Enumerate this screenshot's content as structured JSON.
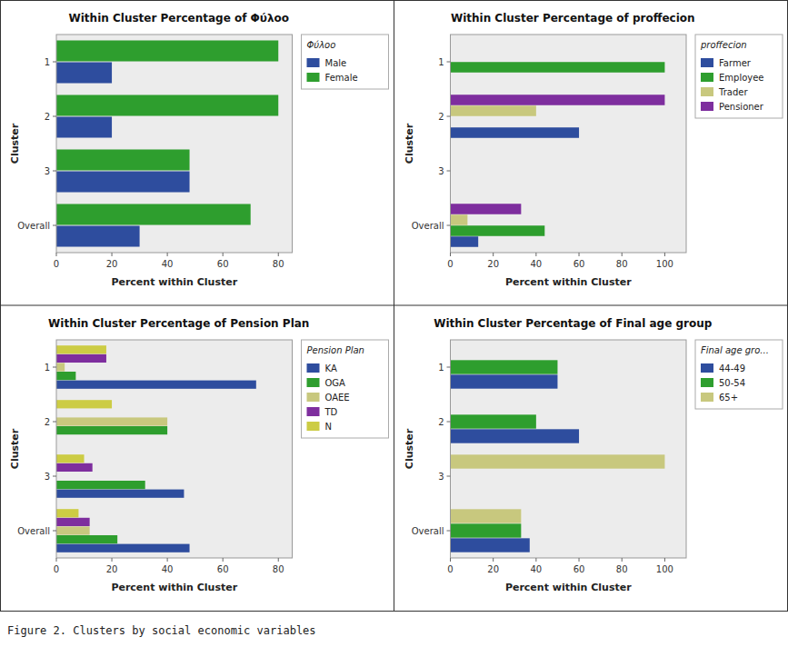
{
  "caption": "Figure 2. Clusters by social economic variables",
  "chart_data": [
    {
      "type": "bar",
      "orientation": "horizontal",
      "title": "Within Cluster Percentage of Φύλoο",
      "legend_title": "Φύλoο",
      "legend": "right",
      "grid": false,
      "categories": [
        "Overall",
        "3",
        "2",
        "1"
      ],
      "series": [
        {
          "name": "Male",
          "color": "#2e4d9e",
          "values": [
            30,
            48,
            20,
            20
          ]
        },
        {
          "name": "Female",
          "color": "#2e9e2e",
          "values": [
            70,
            48,
            80,
            80
          ]
        }
      ],
      "xlim": [
        0,
        85
      ],
      "xticks": [
        0,
        20,
        40,
        60,
        80
      ],
      "xlabel": "Percent within Cluster",
      "ylabel": "Cluster"
    },
    {
      "type": "bar",
      "orientation": "horizontal",
      "title": "Within Cluster Percentage of proffecion",
      "legend_title": "proffecion",
      "legend": "right",
      "grid": false,
      "categories": [
        "Overall",
        "3",
        "2",
        "1"
      ],
      "series": [
        {
          "name": "Farmer",
          "color": "#2e4d9e",
          "values": [
            13,
            0,
            60,
            0
          ]
        },
        {
          "name": "Employee",
          "color": "#2e9e2e",
          "values": [
            44,
            0,
            0,
            100
          ]
        },
        {
          "name": "Trader",
          "color": "#c8c87e",
          "values": [
            8,
            0,
            40,
            0
          ]
        },
        {
          "name": "Pensioner",
          "color": "#7e2e9e",
          "values": [
            33,
            0,
            100,
            0
          ]
        }
      ],
      "xlim": [
        0,
        110
      ],
      "xticks": [
        0,
        20,
        40,
        60,
        80,
        100
      ],
      "xlabel": "Percent within Cluster",
      "ylabel": "Cluster"
    },
    {
      "type": "bar",
      "orientation": "horizontal",
      "title": "Within Cluster Percentage of Pension Plan",
      "legend_title": "Pension Plan",
      "legend": "right",
      "grid": false,
      "categories": [
        "Overall",
        "3",
        "2",
        "1"
      ],
      "series": [
        {
          "name": "KA",
          "color": "#2e4d9e",
          "values": [
            48,
            46,
            0,
            72
          ]
        },
        {
          "name": "OGA",
          "color": "#2e9e2e",
          "values": [
            22,
            32,
            40,
            7
          ]
        },
        {
          "name": "OAEE",
          "color": "#c8c87e",
          "values": [
            12,
            0,
            40,
            3
          ]
        },
        {
          "name": "TD",
          "color": "#7e2e9e",
          "values": [
            12,
            13,
            0,
            18
          ]
        },
        {
          "name": "N",
          "color": "#cccc44",
          "values": [
            8,
            10,
            20,
            18
          ]
        }
      ],
      "xlim": [
        0,
        85
      ],
      "xticks": [
        0,
        20,
        40,
        60,
        80
      ],
      "xlabel": "Percent within Cluster",
      "ylabel": "Cluster"
    },
    {
      "type": "bar",
      "orientation": "horizontal",
      "title": "Within Cluster Percentage of Final age group",
      "legend_title": "Final age gro...",
      "legend": "right",
      "grid": false,
      "categories": [
        "Overall",
        "3",
        "2",
        "1"
      ],
      "series": [
        {
          "name": "44-49",
          "color": "#2e4d9e",
          "values": [
            37,
            0,
            60,
            50
          ]
        },
        {
          "name": "50-54",
          "color": "#2e9e2e",
          "values": [
            33,
            0,
            40,
            50
          ]
        },
        {
          "name": "65+",
          "color": "#c8c87e",
          "values": [
            33,
            100,
            0,
            0
          ]
        }
      ],
      "xlim": [
        0,
        110
      ],
      "xticks": [
        0,
        20,
        40,
        60,
        80,
        100
      ],
      "xlabel": "Percent within Cluster",
      "ylabel": "Cluster"
    }
  ]
}
